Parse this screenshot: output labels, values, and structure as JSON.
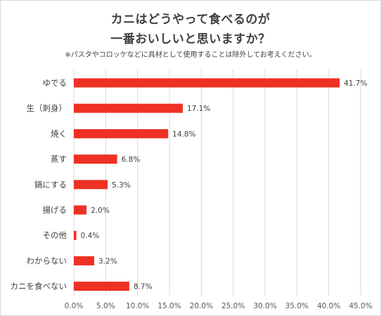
{
  "chart_data": {
    "type": "bar",
    "orientation": "horizontal",
    "title": "カニはどうやって食べるのが",
    "title_line2": "一番おいしいと思いますか？",
    "subtitle": "※パスタやコロッケなどに具材として使用することは除外してお考えください。",
    "categories": [
      "ゆでる",
      "生（刺身）",
      "焼く",
      "蒸す",
      "鍋にする",
      "揚げる",
      "その他",
      "わからない",
      "カニを食べない"
    ],
    "values": [
      41.7,
      17.1,
      14.8,
      6.8,
      5.3,
      2.0,
      0.4,
      3.2,
      8.7
    ],
    "value_labels": [
      "41.7%",
      "17.1%",
      "14.8%",
      "6.8%",
      "5.3%",
      "2.0%",
      "0.4%",
      "3.2%",
      "8.7%"
    ],
    "xlim": [
      0,
      45
    ],
    "xticks": [
      "0.0%",
      "5.0%",
      "10.0%",
      "15.0%",
      "20.0%",
      "25.0%",
      "30.0%",
      "35.0%",
      "40.0%",
      "45.0%"
    ],
    "xlabel": "",
    "ylabel": "",
    "bar_color": "#ee3124",
    "grid": "vertical"
  }
}
